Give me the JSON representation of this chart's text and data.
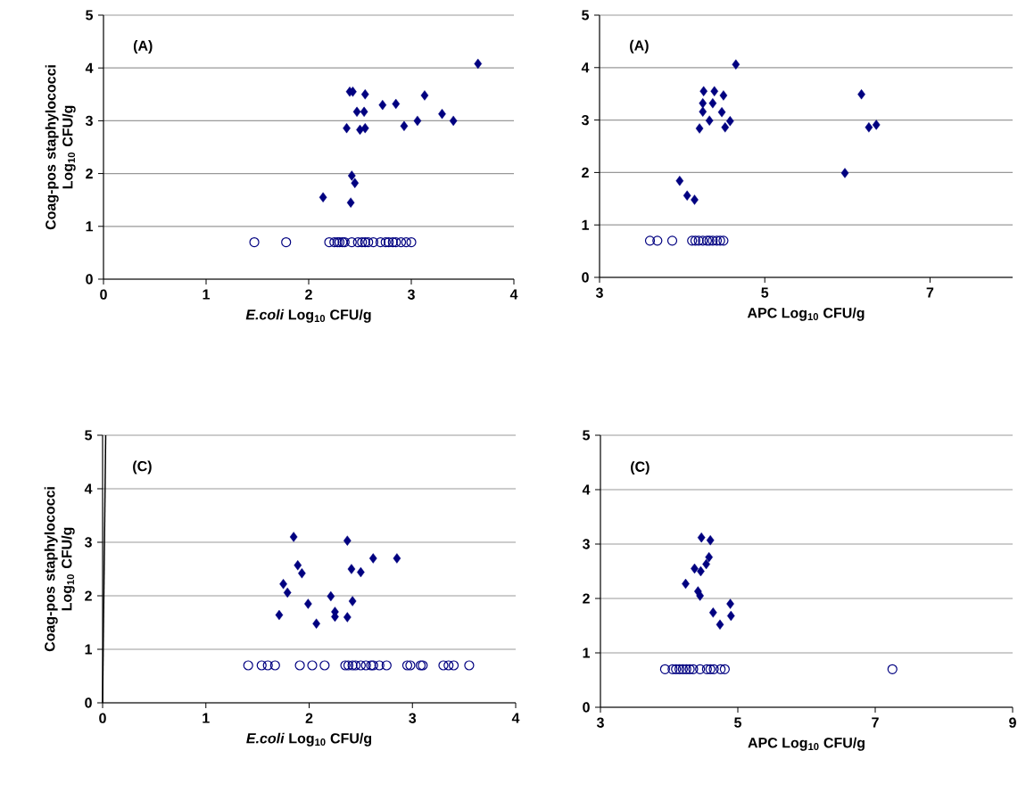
{
  "chart_data": [
    {
      "type": "scatter",
      "annotations": [
        "(A)"
      ],
      "xlabel": "*E.coli* Log$_{10}$ CFU/g",
      "ylabel": "Coag-pos staphylococci Log$_{10}$ CFU/g",
      "xlim": [
        0,
        4
      ],
      "xticks": [
        0,
        1,
        2,
        3,
        4
      ],
      "ylim": [
        0,
        5
      ],
      "yticks": [
        0,
        1,
        2,
        3,
        4,
        5
      ],
      "grid": "y",
      "series": [
        {
          "color": "#000080",
          "marker": "diamond",
          "x": [
            2.14,
            2.37,
            2.4,
            2.43,
            2.41,
            2.42,
            2.45,
            2.47,
            2.5,
            2.54,
            2.55,
            2.55,
            2.72,
            2.85,
            2.93,
            3.06,
            3.13,
            3.3,
            3.41,
            3.65
          ],
          "values": [
            1.55,
            2.86,
            3.55,
            3.55,
            1.45,
            1.96,
            1.82,
            3.17,
            2.83,
            3.17,
            2.86,
            3.5,
            3.3,
            3.32,
            2.9,
            3.0,
            3.48,
            3.13,
            3.0,
            4.08
          ]
        },
        {
          "color": "#000080",
          "marker": "circle",
          "x": [
            1.47,
            1.78,
            2.2,
            2.25,
            2.28,
            2.3,
            2.33,
            2.35,
            2.42,
            2.48,
            2.52,
            2.55,
            2.58,
            2.63,
            2.7,
            2.75,
            2.78,
            2.82,
            2.85,
            2.9,
            2.95,
            3.0
          ],
          "values": [
            0.7,
            0.7,
            0.7,
            0.7,
            0.7,
            0.7,
            0.7,
            0.7,
            0.7,
            0.7,
            0.7,
            0.7,
            0.7,
            0.7,
            0.7,
            0.7,
            0.7,
            0.7,
            0.7,
            0.7,
            0.7,
            0.7
          ]
        }
      ]
    },
    {
      "type": "scatter",
      "annotations": [
        "(A)"
      ],
      "xlabel": "APC Log$_{10}$ CFU/g",
      "xlim": [
        3,
        8
      ],
      "xticks": [
        3,
        5,
        7
      ],
      "ylim": [
        0,
        5
      ],
      "yticks": [
        0,
        1,
        2,
        3,
        4,
        5
      ],
      "grid": "y",
      "series": [
        {
          "color": "#000080",
          "marker": "diamond",
          "x": [
            4.65,
            4.26,
            4.39,
            4.5,
            4.25,
            4.37,
            4.25,
            4.48,
            4.33,
            4.58,
            4.52,
            4.21,
            3.97,
            4.06,
            4.15,
            6.17,
            6.26,
            6.35,
            5.97
          ],
          "values": [
            4.06,
            3.55,
            3.55,
            3.47,
            3.32,
            3.32,
            3.16,
            3.15,
            2.99,
            2.98,
            2.86,
            2.84,
            1.84,
            1.56,
            1.48,
            3.49,
            2.86,
            2.91,
            1.99
          ]
        },
        {
          "color": "#000080",
          "marker": "circle",
          "x": [
            3.61,
            3.7,
            3.88,
            4.12,
            4.16,
            4.2,
            4.25,
            4.3,
            4.33,
            4.37,
            4.42,
            4.46,
            4.5
          ],
          "values": [
            0.7,
            0.7,
            0.7,
            0.7,
            0.7,
            0.7,
            0.7,
            0.7,
            0.7,
            0.7,
            0.7,
            0.7,
            0.7
          ]
        }
      ]
    },
    {
      "type": "scatter",
      "annotations": [
        "(C)"
      ],
      "xlabel": "*E.coli* Log$_{10}$ CFU/g",
      "ylabel": "Coag-pos staphylococci Log$_{10}$ CFU/g",
      "xlim": [
        0,
        4
      ],
      "xticks": [
        0,
        1,
        2,
        3,
        4
      ],
      "ylim": [
        0,
        5
      ],
      "yticks": [
        0,
        1,
        2,
        3,
        4,
        5
      ],
      "grid": "y",
      "series": [
        {
          "color": "#000080",
          "marker": "diamond",
          "x": [
            1.85,
            2.37,
            1.89,
            1.93,
            2.62,
            2.85,
            2.41,
            2.5,
            1.75,
            1.79,
            2.21,
            2.42,
            1.99,
            2.25,
            2.25,
            2.37,
            1.71,
            2.07
          ],
          "values": [
            3.1,
            3.03,
            2.57,
            2.42,
            2.7,
            2.7,
            2.5,
            2.44,
            2.22,
            2.06,
            1.99,
            1.9,
            1.85,
            1.7,
            1.61,
            1.6,
            1.64,
            1.48
          ]
        },
        {
          "color": "#000080",
          "marker": "circle",
          "x": [
            1.41,
            1.54,
            1.6,
            1.67,
            1.91,
            2.03,
            2.15,
            2.35,
            2.38,
            2.42,
            2.45,
            2.5,
            2.55,
            2.6,
            2.62,
            2.68,
            2.75,
            2.95,
            2.98,
            3.08,
            3.1,
            3.3,
            3.35,
            3.4,
            3.55
          ],
          "values": [
            0.7,
            0.7,
            0.7,
            0.7,
            0.7,
            0.7,
            0.7,
            0.7,
            0.7,
            0.7,
            0.7,
            0.7,
            0.7,
            0.7,
            0.7,
            0.7,
            0.7,
            0.7,
            0.7,
            0.7,
            0.7,
            0.7,
            0.7,
            0.7,
            0.7
          ]
        },
        {
          "type": "line",
          "color": "#000000",
          "marker": "none",
          "x": [
            0,
            0.03
          ],
          "values": [
            0,
            5
          ]
        }
      ]
    },
    {
      "type": "scatter",
      "annotations": [
        "(C)"
      ],
      "xlabel": "APC Log$_{10}$ CFU/g",
      "xlim": [
        3,
        9
      ],
      "xticks": [
        3,
        5,
        7,
        9
      ],
      "ylim": [
        0,
        5
      ],
      "yticks": [
        0,
        1,
        2,
        3,
        4,
        5
      ],
      "grid": "y",
      "series": [
        {
          "color": "#000080",
          "marker": "diamond",
          "x": [
            4.47,
            4.6,
            4.58,
            4.54,
            4.37,
            4.46,
            4.24,
            4.42,
            4.45,
            4.89,
            4.64,
            4.9,
            4.74
          ],
          "values": [
            3.12,
            3.07,
            2.76,
            2.63,
            2.55,
            2.5,
            2.27,
            2.13,
            2.05,
            1.9,
            1.74,
            1.68,
            1.52
          ]
        },
        {
          "color": "#000080",
          "marker": "circle",
          "x": [
            3.94,
            4.05,
            4.1,
            4.15,
            4.2,
            4.25,
            4.3,
            4.35,
            4.45,
            4.55,
            4.6,
            4.65,
            4.75,
            4.81,
            7.25
          ],
          "values": [
            0.7,
            0.7,
            0.7,
            0.7,
            0.7,
            0.7,
            0.7,
            0.7,
            0.7,
            0.7,
            0.7,
            0.7,
            0.7,
            0.7,
            0.7
          ]
        }
      ]
    }
  ]
}
